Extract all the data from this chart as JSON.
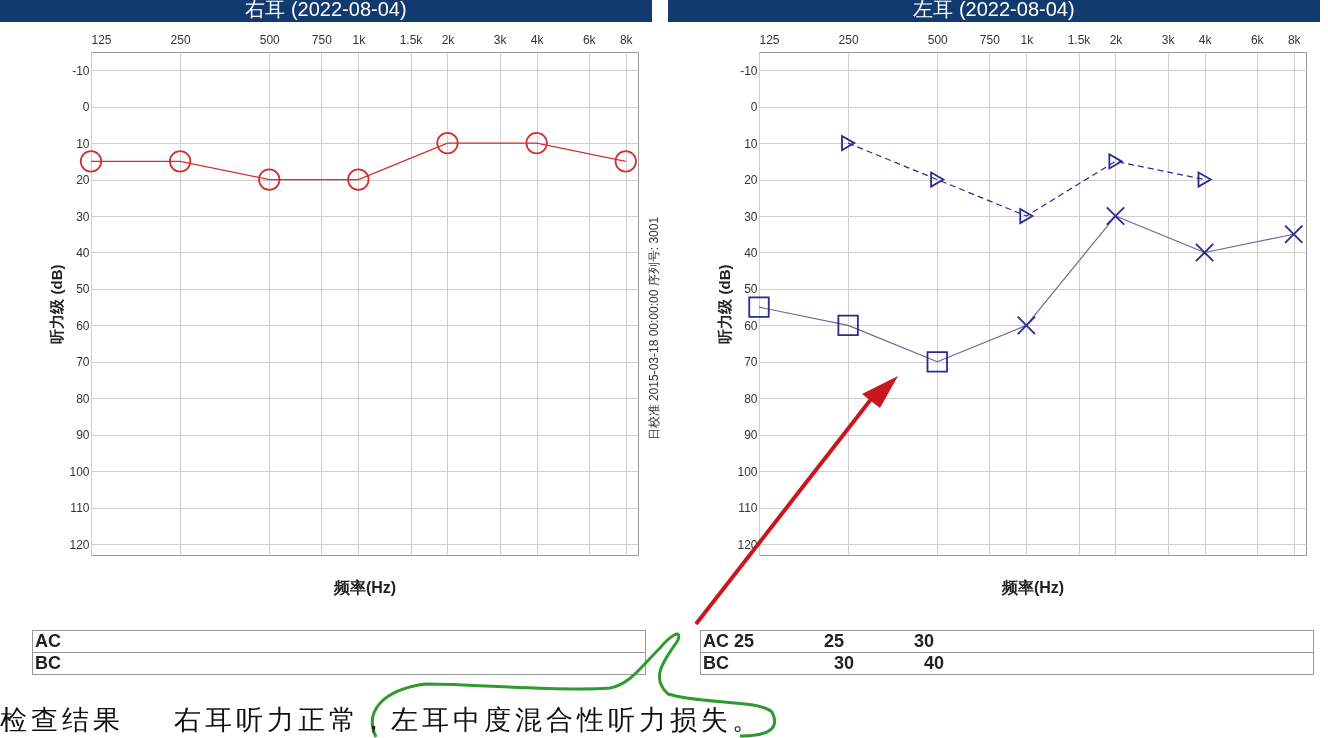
{
  "chart_data": [
    {
      "type": "line",
      "title": "右耳 (2022-08-04)",
      "xlabel": "频率(Hz)",
      "ylabel": "听力级 (dB)",
      "log": "x",
      "grid": true,
      "x": [
        125,
        250,
        500,
        1000,
        2000,
        4000,
        8000
      ],
      "xlim": [
        125,
        8800
      ],
      "xticks": [
        125,
        250,
        500,
        750,
        {
          "value": 1000,
          "label": "1k"
        },
        {
          "value": 1500,
          "label": "1.5k"
        },
        {
          "value": 2000,
          "label": "2k"
        },
        {
          "value": 3000,
          "label": "3k"
        },
        {
          "value": 4000,
          "label": "4k"
        },
        {
          "value": 6000,
          "label": "6k"
        },
        {
          "value": 8000,
          "label": "8k"
        }
      ],
      "ylim": [
        123,
        -15
      ],
      "yticks": [
        -10,
        0,
        10,
        20,
        30,
        40,
        50,
        60,
        70,
        80,
        90,
        100,
        110,
        120
      ],
      "series": [
        {
          "color": "#cc3333",
          "marker": "circle",
          "values": [
            15,
            15,
            20,
            20,
            10,
            10,
            15
          ]
        }
      ],
      "annotations": [
        "AC",
        "BC",
        "日校准 2015-03-18 00:00:00 序列号: 3001",
        "检查结果    右耳听力正常，左耳中度混合性听力损失。"
      ]
    },
    {
      "type": "line",
      "title": "左耳 (2022-08-04)",
      "xlabel": "频率(Hz)",
      "ylabel": "听力级 (dB)",
      "log": "x",
      "grid": true,
      "x": [
        125,
        250,
        500,
        1000,
        2000,
        4000,
        8000
      ],
      "xlim": [
        125,
        8800
      ],
      "xticks": [
        125,
        250,
        500,
        750,
        {
          "value": 1000,
          "label": "1k"
        },
        {
          "value": 1500,
          "label": "1.5k"
        },
        {
          "value": 2000,
          "label": "2k"
        },
        {
          "value": 3000,
          "label": "3k"
        },
        {
          "value": 4000,
          "label": "4k"
        },
        {
          "value": 6000,
          "label": "6k"
        },
        {
          "value": 8000,
          "label": "8k"
        }
      ],
      "ylim": [
        123,
        -15
      ],
      "yticks": [
        -10,
        0,
        10,
        20,
        30,
        40,
        50,
        60,
        70,
        80,
        90,
        100,
        110,
        120
      ],
      "series": [
        {
          "color": "#6a6a9a",
          "marker": "none",
          "values": [
            55,
            60,
            70,
            60,
            30,
            40,
            35
          ]
        },
        {
          "type": "scatter",
          "color": "#2b2b8c",
          "marker": "square",
          "x": [
            125,
            250,
            500
          ],
          "values": [
            55,
            60,
            70
          ]
        },
        {
          "type": "scatter",
          "color": "#2b2b8c",
          "marker": "cross",
          "x": [
            1000,
            2000,
            4000,
            8000
          ],
          "values": [
            60,
            30,
            40,
            35
          ]
        },
        {
          "color": "#2b2b8c",
          "marker": "triangle",
          "line_style": "dashed",
          "x": [
            250,
            500,
            1000,
            2000,
            4000
          ],
          "values": [
            10,
            20,
            30,
            15,
            20
          ]
        }
      ],
      "annotations": [
        "AC 25              25              30",
        "BC                     30              40"
      ]
    }
  ]
}
